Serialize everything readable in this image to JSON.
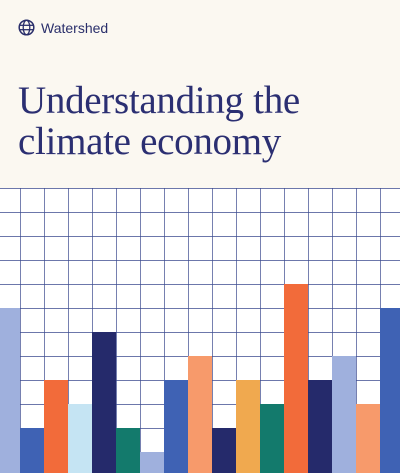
{
  "header": {
    "brand": "Watershed"
  },
  "title": {
    "lines": [
      "Understanding the",
      "climate economy"
    ]
  }
}
